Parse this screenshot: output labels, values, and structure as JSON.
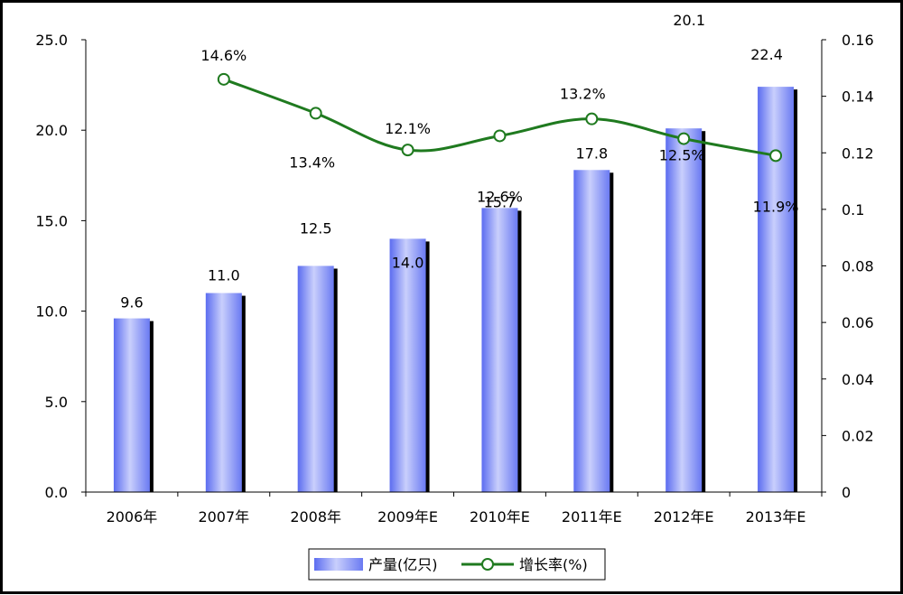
{
  "chart_data": {
    "type": "bar",
    "categories": [
      "2006年",
      "2007年",
      "2008年",
      "2009年E",
      "2010年E",
      "2011年E",
      "2012年E",
      "2013年E"
    ],
    "series": [
      {
        "name": "产量(亿只)",
        "type": "bar",
        "axis": "left",
        "values": [
          9.6,
          11.0,
          12.5,
          14.0,
          15.7,
          17.8,
          20.1,
          22.4
        ],
        "labels": [
          "9.6",
          "11.0",
          "12.5",
          "14.0",
          "15.7",
          "17.8",
          "20.1",
          "22.4"
        ],
        "color": "#6f7ff2"
      },
      {
        "name": "增长率(%)",
        "type": "line",
        "axis": "right",
        "values": [
          null,
          0.146,
          0.134,
          0.121,
          0.126,
          0.132,
          0.125,
          0.119
        ],
        "labels": [
          "",
          "14.6%",
          "13.4%",
          "12.1%",
          "12.6%",
          "13.2%",
          "12.5%",
          "11.9%"
        ],
        "color": "#1f7a1f"
      }
    ],
    "y_left": {
      "lim": [
        0,
        25
      ],
      "ticks": [
        "0.0",
        "5.0",
        "10.0",
        "15.0",
        "20.0",
        "25.0"
      ]
    },
    "y_right": {
      "lim": [
        0,
        0.16
      ],
      "ticks": [
        "0",
        "0.02",
        "0.04",
        "0.06",
        "0.08",
        "0.1",
        "0.12",
        "0.14",
        "0.16"
      ]
    },
    "legend_position": "bottom",
    "grid": false
  }
}
